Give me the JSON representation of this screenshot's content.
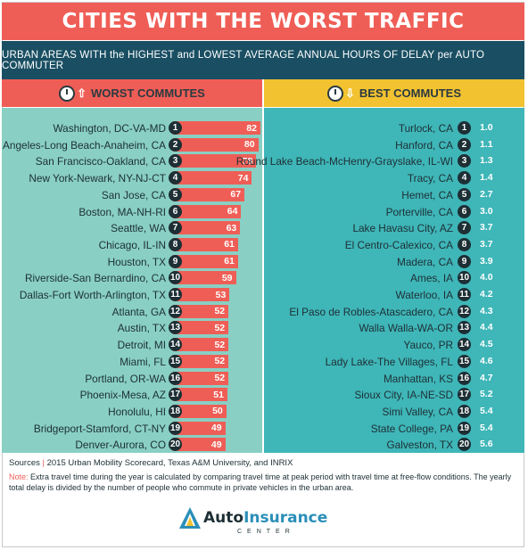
{
  "title": "CITIES WITH THE WORST TRAFFIC",
  "subtitle": "URBAN AREAS WITH the HIGHEST and LOWEST AVERAGE ANNUAL HOURS OF DELAY per AUTO COMMUTER",
  "worst_heading": "WORST COMMUTES",
  "best_heading": "BEST COMMUTES",
  "colors": {
    "title_bg": "#ef5e56",
    "subtitle_bg": "#1a4f63",
    "worst_panel": "#89cfc4",
    "best_panel": "#3fb6b8",
    "worst_bar": "#ef5e56",
    "best_heading_bg": "#f2c230",
    "rank_circle": "#1d2f35"
  },
  "icons": {
    "worst": [
      "clock-icon",
      "arrow-up-icon"
    ],
    "best": [
      "clock-icon",
      "arrow-down-icon"
    ]
  },
  "sources_label": "Sources",
  "sources_text": "2015 Urban Mobility Scorecard, Texas A&M University, and INRIX",
  "note_label": "Note:",
  "note_text": "Extra travel time during the year is calculated by comparing travel time at peak period with travel time at free-flow conditions. The yearly total delay is divided by the number of people who commute in private vehicles in the urban area.",
  "logo": {
    "word_a": "Auto",
    "word_b": "Insurance",
    "center": "CENTER"
  },
  "chart_data": [
    {
      "type": "bar",
      "title": "WORST COMMUTES",
      "ranks": [
        "1",
        "2",
        "3",
        "4",
        "5",
        "6",
        "7",
        "8",
        "9",
        "10",
        "11",
        "12",
        "13",
        "14",
        "15",
        "16",
        "17",
        "18",
        "19",
        "20"
      ],
      "categories": [
        "Washington, DC-VA-MD",
        "Los Angeles-Long Beach-Anaheim, CA",
        "San Francisco-Oakland, CA",
        "New York-Newark, NY-NJ-CT",
        "San Jose, CA",
        "Boston, MA-NH-RI",
        "Seattle, WA",
        "Chicago, IL-IN",
        "Houston, TX",
        "Riverside-San Bernardino, CA",
        "Dallas-Fort Worth-Arlington, TX",
        "Atlanta, GA",
        "Austin, TX",
        "Detroit, MI",
        "Miami, FL",
        "Portland, OR-WA",
        "Phoenix-Mesa, AZ",
        "Honolulu, HI",
        "Bridgeport-Stamford, CT-NY",
        "Denver-Aurora, CO"
      ],
      "values": [
        82,
        80,
        78,
        74,
        67,
        64,
        63,
        61,
        61,
        59,
        53,
        52,
        52,
        52,
        52,
        52,
        51,
        50,
        49,
        49
      ]
    },
    {
      "type": "table",
      "title": "BEST COMMUTES",
      "ranks": [
        "1",
        "2",
        "3",
        "4",
        "5",
        "6",
        "7",
        "8",
        "9",
        "10",
        "11",
        "12",
        "13",
        "14",
        "15",
        "16",
        "17",
        "18",
        "19",
        "20"
      ],
      "categories": [
        "Turlock, CA",
        "Hanford, CA",
        "Round Lake Beach-McHenry-Grayslake, IL-WI",
        "Tracy, CA",
        "Hemet, CA",
        "Porterville, CA",
        "Lake Havasu City, AZ",
        "El Centro-Calexico, CA",
        "Madera, CA",
        "Ames, IA",
        "Waterloo, IA",
        "El Paso de Robles-Atascadero, CA",
        "Walla Walla-WA-OR",
        "Yauco, PR",
        "Lady Lake-The Villages, FL",
        "Manhattan, KS",
        "Sioux City, IA-NE-SD",
        "Simi Valley, CA",
        "State College, PA",
        "Galveston, TX"
      ],
      "values": [
        "1.0",
        "1.1",
        "1.3",
        "1.4",
        "2.7",
        "3.0",
        "3.7",
        "3.7",
        "3.9",
        "4.0",
        "4.2",
        "4.3",
        "4.4",
        "4.5",
        "4.6",
        "4.7",
        "5.2",
        "5.4",
        "5.4",
        "5.6"
      ]
    }
  ]
}
